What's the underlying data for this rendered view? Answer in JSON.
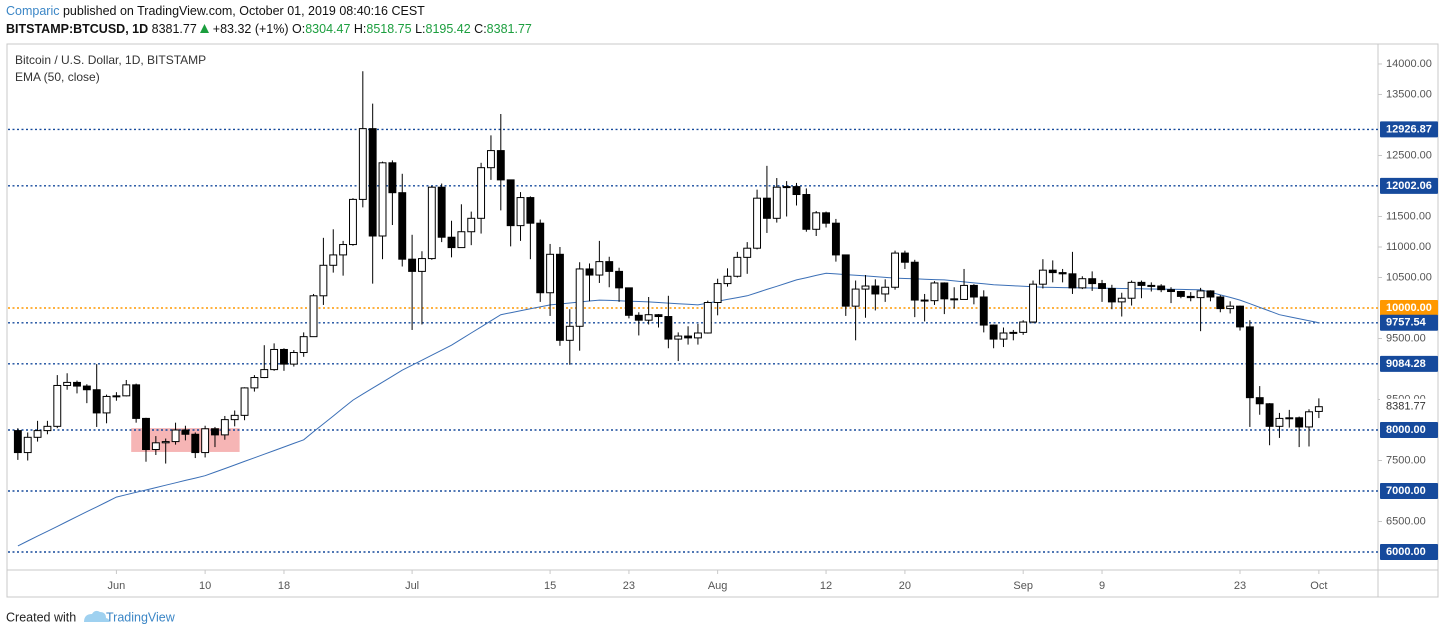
{
  "header": {
    "publisher": "Comparic",
    "published": "published on TradingView.com, October 01, 2019 08:40:16 CEST",
    "symbol": "BITSTAMP:BTCUSD, 1D",
    "change": "+83.32 (+1%)",
    "open_label": "O:",
    "high_label": "H:",
    "low_label": "L:",
    "close_label": "C:"
  },
  "footer": {
    "created": "Created with",
    "brand": "TradingView"
  },
  "chart_data": {
    "type": "candlestick",
    "title": "Bitcoin / U.S. Dollar, 1D, BITSTAMP",
    "x": [
      "2019-05-22",
      "2019-05-23",
      "2019-05-24",
      "2019-05-25",
      "2019-05-26",
      "2019-05-27",
      "2019-05-28",
      "2019-05-29",
      "2019-05-30",
      "2019-05-31",
      "2019-06-01",
      "2019-06-02",
      "2019-06-03",
      "2019-06-04",
      "2019-06-05",
      "2019-06-06",
      "2019-06-07",
      "2019-06-08",
      "2019-06-09",
      "2019-06-10",
      "2019-06-11",
      "2019-06-12",
      "2019-06-13",
      "2019-06-14",
      "2019-06-15",
      "2019-06-16",
      "2019-06-17",
      "2019-06-18",
      "2019-06-19",
      "2019-06-20",
      "2019-06-21",
      "2019-06-22",
      "2019-06-23",
      "2019-06-24",
      "2019-06-25",
      "2019-06-26",
      "2019-06-27",
      "2019-06-28",
      "2019-06-29",
      "2019-06-30",
      "2019-07-01",
      "2019-07-02",
      "2019-07-03",
      "2019-07-04",
      "2019-07-05",
      "2019-07-06",
      "2019-07-07",
      "2019-07-08",
      "2019-07-09",
      "2019-07-10",
      "2019-07-11",
      "2019-07-12",
      "2019-07-13",
      "2019-07-14",
      "2019-07-15",
      "2019-07-16",
      "2019-07-17",
      "2019-07-18",
      "2019-07-19",
      "2019-07-20",
      "2019-07-21",
      "2019-07-22",
      "2019-07-23",
      "2019-07-24",
      "2019-07-25",
      "2019-07-26",
      "2019-07-27",
      "2019-07-28",
      "2019-07-29",
      "2019-07-30",
      "2019-07-31",
      "2019-08-01",
      "2019-08-02",
      "2019-08-03",
      "2019-08-04",
      "2019-08-05",
      "2019-08-06",
      "2019-08-07",
      "2019-08-08",
      "2019-08-09",
      "2019-08-10",
      "2019-08-11",
      "2019-08-12",
      "2019-08-13",
      "2019-08-14",
      "2019-08-15",
      "2019-08-16",
      "2019-08-17",
      "2019-08-18",
      "2019-08-19",
      "2019-08-20",
      "2019-08-21",
      "2019-08-22",
      "2019-08-23",
      "2019-08-24",
      "2019-08-25",
      "2019-08-26",
      "2019-08-27",
      "2019-08-28",
      "2019-08-29",
      "2019-08-30",
      "2019-08-31",
      "2019-09-01",
      "2019-09-02",
      "2019-09-03",
      "2019-09-04",
      "2019-09-05",
      "2019-09-06",
      "2019-09-07",
      "2019-09-08",
      "2019-09-09",
      "2019-09-10",
      "2019-09-11",
      "2019-09-12",
      "2019-09-13",
      "2019-09-14",
      "2019-09-15",
      "2019-09-16",
      "2019-09-17",
      "2019-09-18",
      "2019-09-19",
      "2019-09-20",
      "2019-09-21",
      "2019-09-22",
      "2019-09-23",
      "2019-09-24",
      "2019-09-25",
      "2019-09-26",
      "2019-09-27",
      "2019-09-28",
      "2019-09-29",
      "2019-09-30",
      "2019-10-01"
    ],
    "open": [
      7990,
      7630,
      7880,
      7990,
      8060,
      8730,
      8780,
      8720,
      8660,
      8280,
      8550,
      8560,
      8740,
      8190,
      7680,
      7790,
      7810,
      8000,
      7930,
      7630,
      8020,
      7920,
      8170,
      8240,
      8690,
      8860,
      8990,
      9320,
      9080,
      9270,
      9530,
      10200,
      10700,
      10870,
      11040,
      11780,
      12940,
      11180,
      12380,
      11890,
      10800,
      10600,
      10810,
      11980,
      11160,
      10990,
      11250,
      11470,
      12300,
      12580,
      12100,
      11350,
      11810,
      11390,
      10250,
      10880,
      9470,
      9700,
      10640,
      10540,
      10760,
      10600,
      10330,
      9880,
      9800,
      9890,
      9860,
      9490,
      9540,
      9510,
      9590,
      10090,
      10400,
      10520,
      10830,
      10980,
      11800,
      11470,
      11980,
      11990,
      11860,
      11290,
      11560,
      11390,
      10870,
      10030,
      10310,
      10360,
      10230,
      10340,
      10900,
      10750,
      10130,
      10120,
      10410,
      10150,
      10140,
      10370,
      10180,
      9720,
      9490,
      9590,
      9600,
      9770,
      10390,
      10620,
      10580,
      10560,
      10330,
      10480,
      10400,
      10320,
      10100,
      10160,
      10420,
      10370,
      10360,
      10300,
      10270,
      10190,
      10170,
      10280,
      10180,
      9990,
      10030,
      9690,
      8530,
      8430,
      8060,
      8190,
      8200,
      8050,
      8304.47
    ],
    "high": [
      8030,
      7960,
      8150,
      8150,
      8900,
      8930,
      8810,
      8750,
      9080,
      8580,
      8620,
      8820,
      8760,
      8200,
      7900,
      7860,
      8120,
      8070,
      7960,
      8070,
      8050,
      8230,
      8320,
      8700,
      8900,
      9390,
      9420,
      9340,
      9310,
      9600,
      10230,
      11150,
      11290,
      11100,
      11800,
      13880,
      13350,
      12400,
      12420,
      12200,
      11200,
      10930,
      12000,
      12040,
      11430,
      11700,
      11580,
      12380,
      12830,
      13180,
      12100,
      11900,
      11830,
      11450,
      11050,
      11000,
      9980,
      10750,
      10730,
      11100,
      10840,
      10660,
      10330,
      9930,
      10180,
      9900,
      10200,
      9600,
      9700,
      9740,
      10120,
      10480,
      10650,
      10920,
      11080,
      11940,
      12330,
      12130,
      12080,
      12050,
      11960,
      11590,
      11580,
      11460,
      10870,
      10450,
      10540,
      10470,
      10470,
      10940,
      10940,
      10790,
      10230,
      10440,
      10420,
      10340,
      10640,
      10390,
      10290,
      9730,
      9680,
      9640,
      9800,
      10450,
      10800,
      10780,
      10640,
      10920,
      10520,
      10600,
      10460,
      10380,
      10250,
      10450,
      10450,
      10420,
      10390,
      10340,
      10280,
      10260,
      10330,
      10290,
      10210,
      10110,
      10040,
      9800,
      8720,
      8440,
      8280,
      8330,
      8220,
      8340,
      8518.75
    ],
    "low": [
      7510,
      7500,
      7810,
      7930,
      8030,
      8660,
      8600,
      8440,
      8050,
      8110,
      8480,
      8550,
      8120,
      7480,
      7590,
      7450,
      7760,
      7830,
      7540,
      7550,
      7720,
      7840,
      8060,
      8160,
      8630,
      8850,
      8970,
      8970,
      9040,
      9200,
      9530,
      10050,
      10580,
      10530,
      11020,
      11650,
      10400,
      10800,
      11360,
      10680,
      9640,
      9730,
      10790,
      11080,
      10830,
      10990,
      11030,
      11220,
      12100,
      11600,
      11010,
      11100,
      10800,
      10100,
      9870,
      9380,
      9070,
      9300,
      10110,
      10410,
      10340,
      10100,
      9830,
      9550,
      9730,
      9680,
      9340,
      9130,
      9400,
      9400,
      9580,
      9880,
      10350,
      10500,
      10560,
      10960,
      11230,
      11400,
      11500,
      11680,
      11250,
      11180,
      11320,
      10760,
      9870,
      9470,
      9840,
      9960,
      10100,
      10300,
      10640,
      9850,
      9780,
      10050,
      9900,
      9990,
      10140,
      10060,
      9600,
      9340,
      9360,
      9470,
      9560,
      9750,
      10320,
      10420,
      10420,
      10230,
      10310,
      10280,
      10100,
      9980,
      9860,
      10040,
      10160,
      10270,
      10260,
      10080,
      10160,
      10110,
      9620,
      10110,
      9930,
      9910,
      9630,
      8050,
      8250,
      7750,
      7870,
      8040,
      7720,
      7730,
      8195.42
    ],
    "close": [
      7630,
      7880,
      7990,
      8060,
      8730,
      8780,
      8720,
      8660,
      8280,
      8550,
      8560,
      8740,
      8190,
      7680,
      7790,
      7810,
      8000,
      7930,
      7630,
      8020,
      7920,
      8170,
      8240,
      8690,
      8860,
      8990,
      9320,
      9080,
      9270,
      9530,
      10200,
      10700,
      10870,
      11040,
      11780,
      12940,
      11180,
      12380,
      11890,
      10800,
      10600,
      10810,
      11980,
      11160,
      10990,
      11250,
      11470,
      12300,
      12580,
      12100,
      11350,
      11810,
      11390,
      10250,
      10880,
      9470,
      9700,
      10640,
      10540,
      10760,
      10600,
      10330,
      9880,
      9800,
      9890,
      9860,
      9490,
      9540,
      9510,
      9590,
      10090,
      10400,
      10520,
      10830,
      10980,
      11800,
      11470,
      11980,
      11990,
      11860,
      11290,
      11560,
      11390,
      10870,
      10030,
      10310,
      10360,
      10230,
      10340,
      10900,
      10750,
      10130,
      10120,
      10410,
      10150,
      10140,
      10370,
      10180,
      9720,
      9490,
      9590,
      9600,
      9770,
      10390,
      10620,
      10580,
      10560,
      10330,
      10480,
      10400,
      10320,
      10100,
      10160,
      10420,
      10370,
      10360,
      10300,
      10270,
      10190,
      10170,
      10280,
      10180,
      9990,
      10030,
      9690,
      8530,
      8430,
      8060,
      8190,
      8200,
      8050,
      8298.45,
      8381.77
    ],
    "up_color": "#ffffff",
    "down_color": "#000000",
    "outline_color": "#000000",
    "ema": {
      "name": "EMA (50, close)",
      "color": "#3b6fb6",
      "values": [
        6100,
        6180,
        6260,
        6340,
        6420,
        6500,
        6580,
        6660,
        6740,
        6820,
        6900,
        6939,
        6978,
        7017,
        7056,
        7095,
        7134,
        7173,
        7212,
        7250,
        7309,
        7368,
        7427,
        7486,
        7545,
        7604,
        7663,
        7722,
        7781,
        7840,
        7970,
        8100,
        8230,
        8360,
        8490,
        8588,
        8686,
        8784,
        8882,
        8980,
        9062,
        9144,
        9226,
        9308,
        9390,
        9490,
        9590,
        9690,
        9790,
        9890,
        9922,
        9954,
        9986,
        10018,
        10050,
        10066,
        10082,
        10098,
        10114,
        10130,
        10124,
        10118,
        10112,
        10106,
        10100,
        10090,
        10080,
        10070,
        10060,
        10050,
        10080,
        10110,
        10140,
        10170,
        10200,
        10252,
        10304,
        10356,
        10408,
        10460,
        10497,
        10534,
        10570,
        10559,
        10548,
        10537,
        10526,
        10514,
        10502,
        10490,
        10484,
        10478,
        10472,
        10466,
        10460,
        10444,
        10428,
        10412,
        10396,
        10380,
        10372,
        10364,
        10356,
        10348,
        10340,
        10337,
        10335,
        10332,
        10330,
        10327,
        10325,
        10322,
        10320,
        10317,
        10315,
        10312,
        10310,
        10307,
        10305,
        10302,
        10300,
        10258,
        10215,
        10173,
        10130,
        10070,
        10010,
        9950,
        9890,
        9857,
        9824,
        9791,
        9757.54
      ]
    },
    "levels": [
      {
        "value": 12926.87,
        "label": "12926.87",
        "color": "#164a9c"
      },
      {
        "value": 12002.06,
        "label": "12002.06",
        "color": "#164a9c"
      },
      {
        "value": 10000,
        "label": "10000.00",
        "color": "#ff9800"
      },
      {
        "value": 9757.54,
        "label": "9757.54",
        "color": "#164a9c"
      },
      {
        "value": 9084.28,
        "label": "9084.28",
        "color": "#164a9c"
      },
      {
        "value": 8000,
        "label": "8000.00",
        "color": "#164a9c"
      },
      {
        "value": 7000,
        "label": "7000.00",
        "color": "#164a9c"
      },
      {
        "value": 6000,
        "label": "6000.00",
        "color": "#164a9c"
      }
    ],
    "highlight": {
      "x": [
        "2019-06-03",
        "2019-06-13"
      ],
      "y": [
        7640,
        8030
      ],
      "color": "#f4a3a3"
    },
    "xlim": [
      "2019-05-21",
      "2019-10-07"
    ],
    "ylim": [
      5705,
      14311
    ],
    "xticks": [
      {
        "value": "2019-06-01",
        "label": "Jun"
      },
      {
        "value": "2019-06-10",
        "label": "10"
      },
      {
        "value": "2019-06-18",
        "label": "18"
      },
      {
        "value": "2019-07-01",
        "label": "Jul"
      },
      {
        "value": "2019-07-15",
        "label": "15"
      },
      {
        "value": "2019-07-23",
        "label": "23"
      },
      {
        "value": "2019-08-01",
        "label": "Aug"
      },
      {
        "value": "2019-08-12",
        "label": "12"
      },
      {
        "value": "2019-08-20",
        "label": "20"
      },
      {
        "value": "2019-09-01",
        "label": "Sep"
      },
      {
        "value": "2019-09-09",
        "label": "9"
      },
      {
        "value": "2019-09-23",
        "label": "23"
      },
      {
        "value": "2019-10-01",
        "label": "Oct"
      }
    ],
    "yticks": [
      {
        "value": 14000,
        "label": "14000.00"
      },
      {
        "value": 13500,
        "label": "13500.00"
      },
      {
        "value": 12500,
        "label": "12500.00"
      },
      {
        "value": 11500,
        "label": "11500.00"
      },
      {
        "value": 11000,
        "label": "11000.00"
      },
      {
        "value": 10500,
        "label": "10500.00"
      },
      {
        "value": 9500,
        "label": "9500.00"
      },
      {
        "value": 8500,
        "label": "8500.00"
      },
      {
        "value": 7500,
        "label": "7500.00"
      },
      {
        "value": 6500,
        "label": "6500.00"
      }
    ],
    "grid": false
  }
}
